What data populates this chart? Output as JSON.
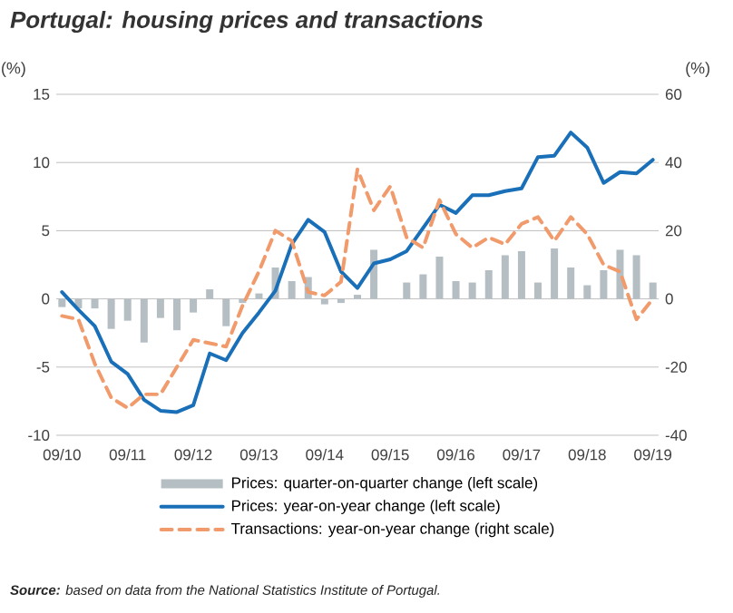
{
  "chart_data": {
    "type": "line",
    "title": "Portugal: housing prices and transactions",
    "ylabel": "(%)",
    "y2label": "(%)",
    "categories": [
      "09/10",
      null,
      null,
      null,
      "09/11",
      null,
      null,
      null,
      "09/12",
      null,
      null,
      null,
      "09/13",
      null,
      null,
      null,
      "09/14",
      null,
      null,
      null,
      "09/15",
      null,
      null,
      null,
      "09/16",
      null,
      null,
      null,
      "09/17",
      null,
      null,
      null,
      "09/18",
      null,
      null,
      null,
      "09/19"
    ],
    "series": [
      {
        "name": "Prices: quarter-on-quarter change (left scale)",
        "type": "bar",
        "color": "#b4bec3",
        "values": [
          -0.6,
          -0.7,
          -0.7,
          -2.2,
          -1.6,
          -3.2,
          -1.4,
          -2.3,
          -1.0,
          0.7,
          -2.0,
          -0.3,
          0.4,
          2.3,
          1.3,
          1.6,
          -0.4,
          -0.3,
          0.3,
          3.6,
          null,
          1.2,
          1.8,
          3.1,
          1.3,
          1.2,
          2.1,
          3.2,
          3.5,
          1.2,
          3.7,
          2.3,
          1.0,
          2.1,
          3.6,
          3.2,
          1.2
        ]
      },
      {
        "name": "Prices: year-on-year change (left scale)",
        "color": "#1a70b8",
        "values": [
          0.5,
          -0.8,
          -2.0,
          -4.6,
          -5.5,
          -7.4,
          -8.2,
          -8.3,
          -7.8,
          -4.0,
          -4.5,
          -2.5,
          -1.0,
          0.6,
          4.0,
          5.8,
          4.9,
          2.0,
          0.8,
          2.6,
          2.9,
          3.5,
          5.2,
          6.9,
          6.3,
          7.6,
          7.6,
          7.9,
          8.1,
          10.4,
          10.5,
          12.2,
          11.1,
          8.5,
          9.3,
          9.2,
          10.2
        ]
      },
      {
        "name": "Transactions: year-on-year change (right scale)",
        "axis": "y2",
        "line_style": "dashed",
        "color": "#f19a6b",
        "values": [
          -5,
          -6,
          -19,
          -29,
          -32,
          -28,
          -28,
          -20,
          -12,
          -13,
          -14,
          -2,
          8,
          20,
          17,
          2,
          1,
          5,
          38,
          26,
          33,
          18,
          15,
          29,
          19,
          15,
          18,
          16,
          22,
          24,
          17,
          24,
          19,
          10,
          8,
          -6,
          0
        ]
      }
    ],
    "ylim": [
      -10,
      15
    ],
    "yticks": [
      -10,
      -5,
      0,
      5,
      10,
      15
    ],
    "y2lim": [
      -40,
      60
    ],
    "y2ticks": [
      -40,
      -20,
      0,
      20,
      40,
      60
    ],
    "grid": "y",
    "legend": "bottom",
    "annotations": [
      "**Source:** based on data from the National Statistics Institute of Portugal."
    ]
  }
}
